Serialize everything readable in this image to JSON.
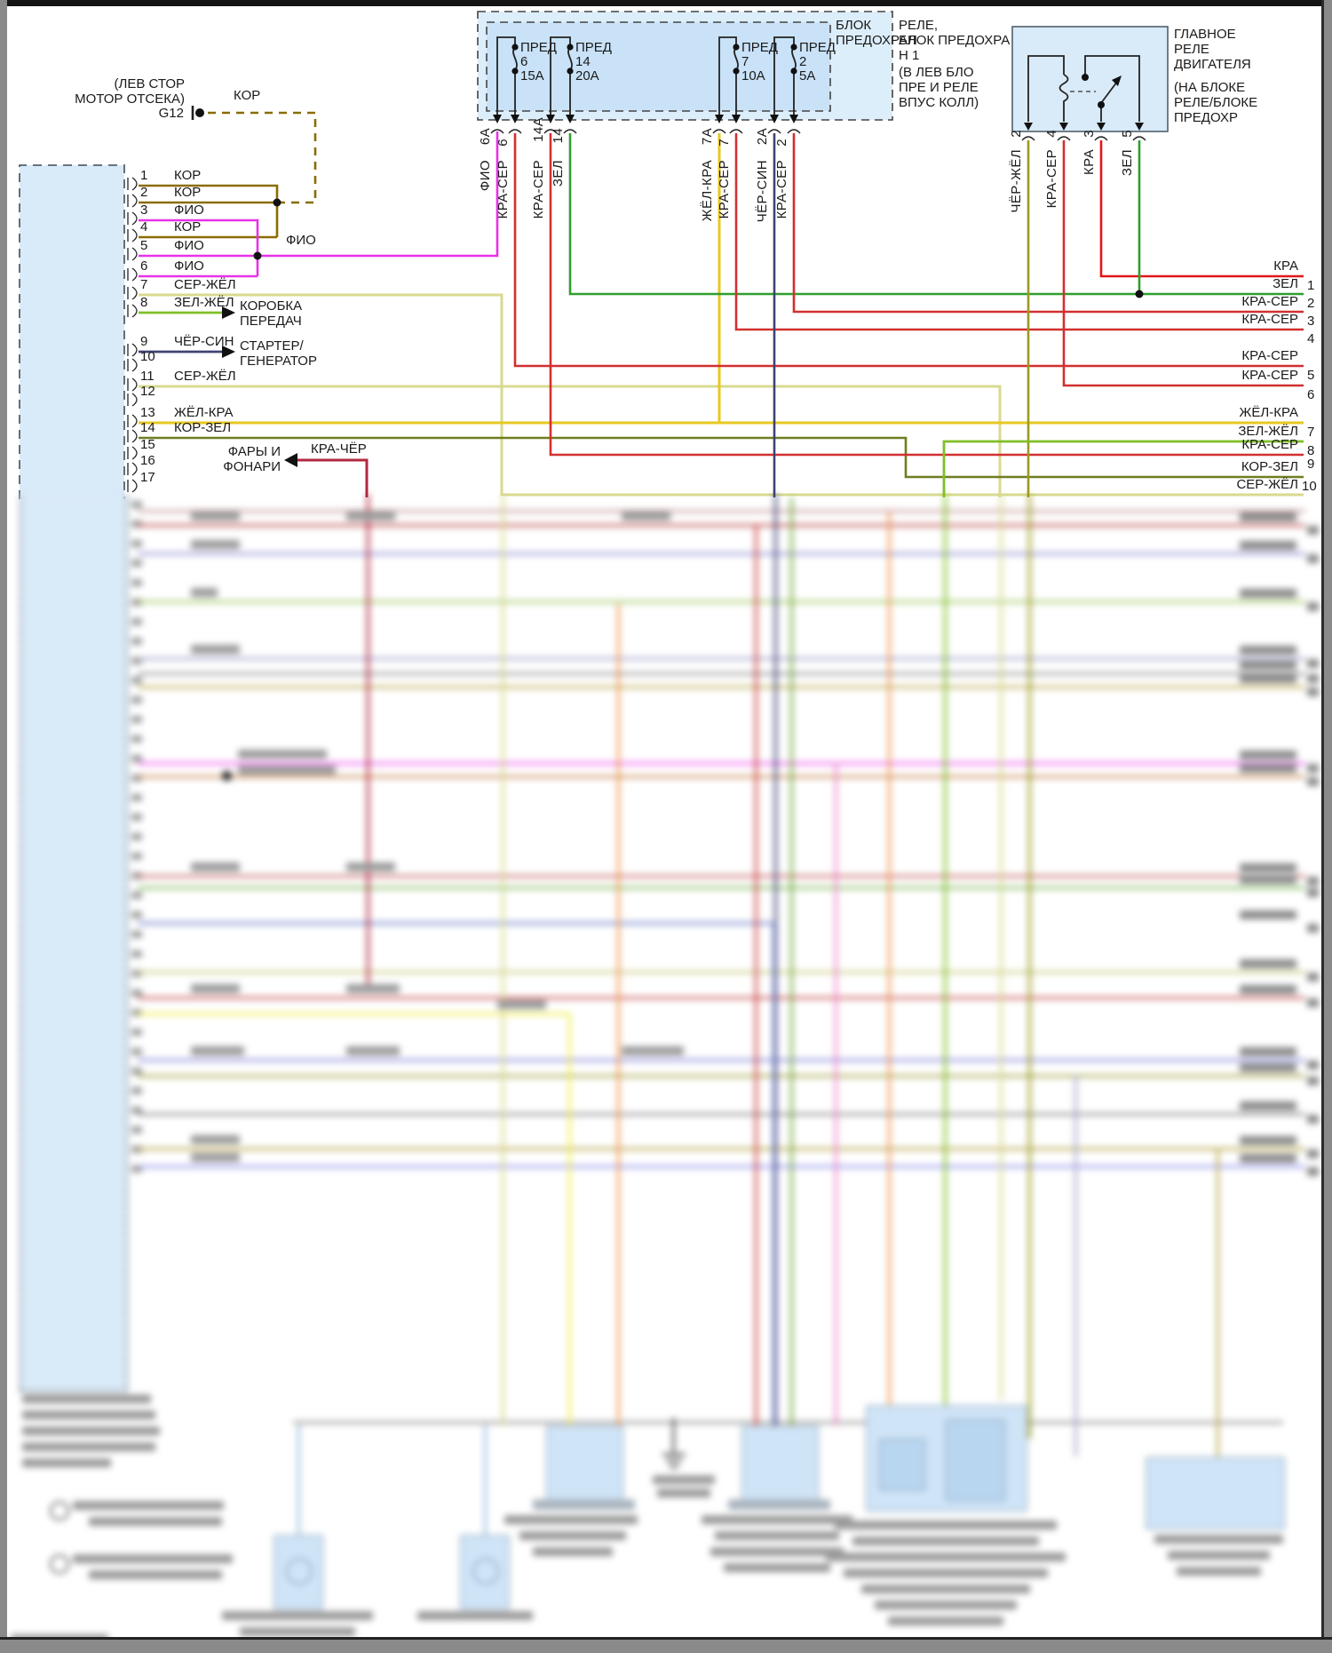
{
  "palette": {
    "kor": "#8a6d00",
    "fio": "#e832e8",
    "ser_zhel": "#d8da90",
    "zel_zhel": "#7fbf26",
    "cher_sin": "#3f4273",
    "zhel_kra": "#e7c81f",
    "kor_zel": "#6f7d20",
    "kra_cher": "#b22840",
    "kra_ser": "#d23030",
    "zel": "#2f9e2f",
    "kra": "#e01818",
    "cher_zhel": "#9a9a20",
    "component_fill": "#d9eaf8",
    "fusebox_outer_fill": "#ddeefb",
    "fusebox_inner_fill": "#c9e2f8"
  },
  "header": {
    "location_line1": "(ЛЕВ СТОР",
    "location_line2": "МОТОР ОТСЕКА)",
    "ground_id": "G12",
    "ground_wire": "КОР"
  },
  "fuse_box": {
    "inner_label_line1": "БЛОК",
    "inner_label_line2": "ПРЕДОХРАН",
    "outer_label_line1": "РЕЛЕ,",
    "outer_label_line2": "БЛОК ПРЕДОХРА",
    "outer_label_line3": "Н 1",
    "outer_label_line4": "(В ЛЕВ БЛО",
    "outer_label_line5": "ПРЕ И РЕЛЕ",
    "outer_label_line6": "ВПУС КОЛЛ)",
    "fuses": [
      {
        "label": "ПРЕД",
        "number": "6",
        "amperage": "15A",
        "pin_a": "6A",
        "wire_a": "ФИО",
        "pin_b": "6",
        "wire_b": "КРА-СЕР"
      },
      {
        "label": "ПРЕД",
        "number": "14",
        "amperage": "20A",
        "pin_a": "14A",
        "wire_a": "КРА-СЕР",
        "pin_b": "14",
        "wire_b": "ЗЕЛ"
      },
      {
        "label": "ПРЕД",
        "number": "7",
        "amperage": "10A",
        "pin_a": "7A",
        "wire_a": "ЖЁЛ-КРА",
        "pin_b": "7",
        "wire_b": "КРА-СЕР"
      },
      {
        "label": "ПРЕД",
        "number": "2",
        "amperage": "5A",
        "pin_a": "2A",
        "wire_a": "ЧЁР-СИН",
        "pin_b": "2",
        "wire_b": "КРА-СЕР"
      }
    ]
  },
  "relay": {
    "title_line1": "ГЛАВНОЕ",
    "title_line2": "РЕЛЕ",
    "title_line3": "ДВИГАТЕЛЯ",
    "subtitle_line1": "(НА БЛОКЕ",
    "subtitle_line2": "РЕЛЕ/БЛОКЕ",
    "subtitle_line3": "ПРЕДОХР",
    "pins": [
      {
        "number": "2",
        "wire": "ЧЁР-ЖЁЛ"
      },
      {
        "number": "4",
        "wire": "КРА-СЕР"
      },
      {
        "number": "3",
        "wire": "КРА"
      },
      {
        "number": "5",
        "wire": "ЗЕЛ"
      }
    ]
  },
  "connector": {
    "pins": [
      {
        "number": "1",
        "wire": "КОР"
      },
      {
        "number": "2",
        "wire": "КОР"
      },
      {
        "number": "3",
        "wire": "ФИО"
      },
      {
        "number": "4",
        "wire": "КОР"
      },
      {
        "number": "5",
        "wire": "ФИО"
      },
      {
        "number": "6",
        "wire": "ФИО"
      },
      {
        "number": "7",
        "wire": "СЕР-ЖЁЛ"
      },
      {
        "number": "8",
        "wire": "ЗЕЛ-ЖЁЛ"
      },
      {
        "number": "9",
        "wire": "ЧЁР-СИН"
      },
      {
        "number": "10",
        "wire": ""
      },
      {
        "number": "11",
        "wire": "СЕР-ЖЁЛ"
      },
      {
        "number": "12",
        "wire": ""
      },
      {
        "number": "13",
        "wire": "ЖЁЛ-КРА"
      },
      {
        "number": "14",
        "wire": "КОР-ЗЕЛ"
      },
      {
        "number": "15",
        "wire": ""
      },
      {
        "number": "16",
        "wire": ""
      },
      {
        "number": "17",
        "wire": ""
      }
    ]
  },
  "branches": {
    "fio_label": "ФИО",
    "gearbox_line1": "КОРОБКА",
    "gearbox_line2": "ПЕРЕДАЧ",
    "starter_line1": "СТАРТЕР/",
    "starter_line2": "ГЕНЕРАТОР",
    "lights_line1": "ФАРЫ И",
    "lights_line2": "ФОНАРИ",
    "lights_wire": "КРА-ЧЁР"
  },
  "right_rail": {
    "lines": [
      {
        "number": "1",
        "label": "КРА"
      },
      {
        "number": "2",
        "label": "ЗЕЛ"
      },
      {
        "number": "3",
        "label": "КРА-СЕР"
      },
      {
        "number": "4",
        "label": "КРА-СЕР"
      },
      {
        "number": "5",
        "label": "КРА-СЕР"
      },
      {
        "number": "6",
        "label": "КРА-СЕР"
      },
      {
        "number": "7",
        "label": "ЖЁЛ-КРА"
      },
      {
        "number": "8",
        "label": "ЗЕЛ-ЖЁЛ"
      },
      {
        "number": "9",
        "label": "КРА-СЕР"
      },
      {
        "number": "10",
        "label": "КОР-ЗЕЛ"
      },
      {
        "number": "",
        "label": "СЕР-ЖЁЛ"
      }
    ]
  }
}
